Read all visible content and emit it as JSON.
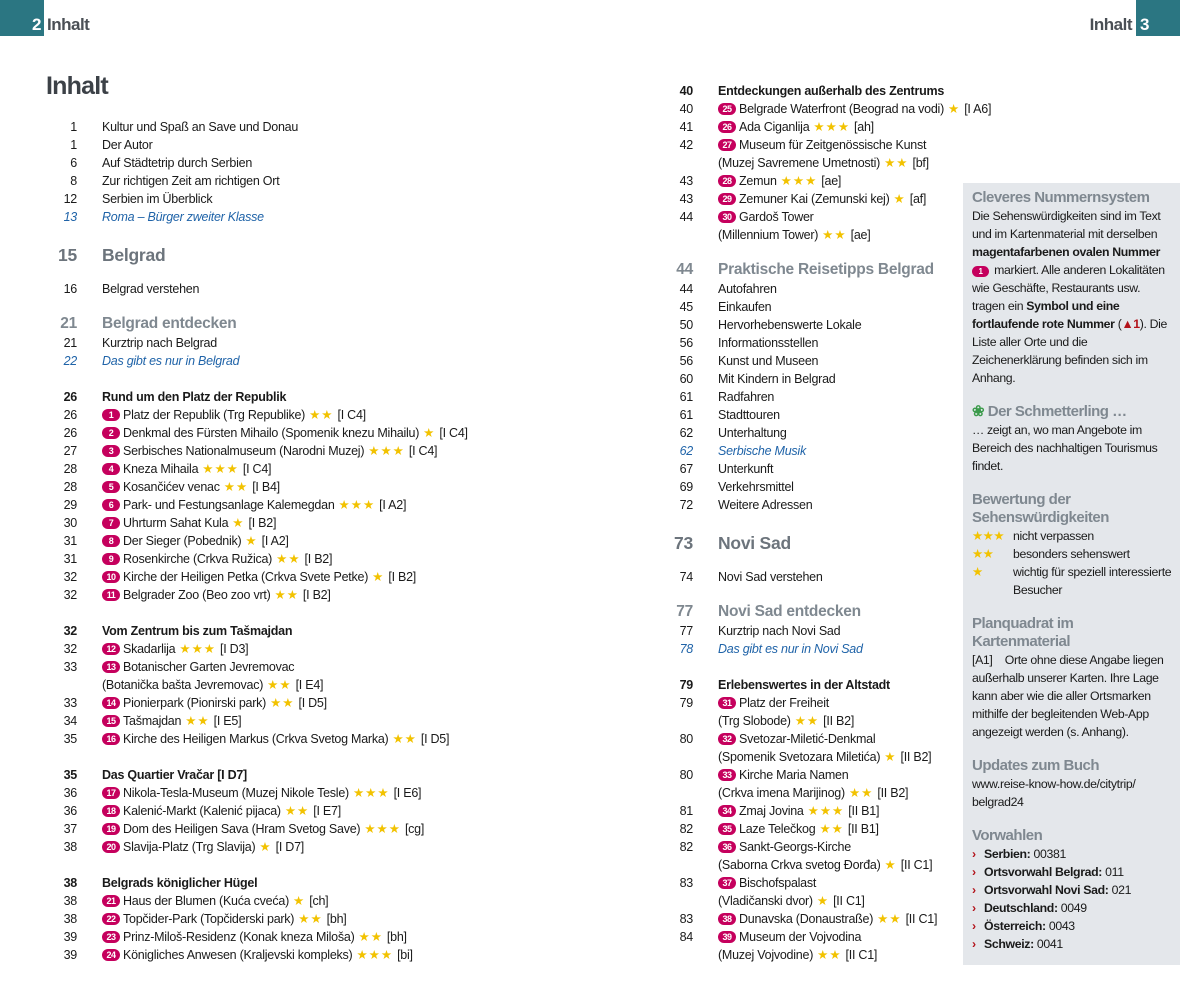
{
  "header": {
    "left_page": "2",
    "left_title": "Inhalt",
    "right_title": "Inhalt",
    "right_page": "3",
    "accent": "#2b7682"
  },
  "title": "Inhalt",
  "colors": {
    "badge": "#c5005d",
    "star": "#f2c200",
    "italic_link": "#1f63a8",
    "sidebar_bg": "#e4e7eb"
  },
  "left_column": [
    {
      "type": "plain",
      "page": "1",
      "text": "Kultur und Spaß an Save und Donau"
    },
    {
      "type": "plain",
      "page": "1",
      "text": "Der Autor"
    },
    {
      "type": "plain",
      "page": "6",
      "text": "Auf Städtetrip durch Serbien"
    },
    {
      "type": "plain",
      "page": "8",
      "text": "Zur richtigen Zeit am richtigen Ort"
    },
    {
      "type": "plain",
      "page": "12",
      "text": "Serbien im Überblick"
    },
    {
      "type": "italic",
      "page": "13",
      "text": "Roma – Bürger zweiter Klasse"
    },
    {
      "type": "major",
      "page": "15",
      "text": "Belgrad"
    },
    {
      "type": "plain",
      "page": "16",
      "text": "Belgrad verstehen"
    },
    {
      "type": "section",
      "page": "21",
      "text": "Belgrad entdecken"
    },
    {
      "type": "plain",
      "page": "21",
      "text": "Kurztrip nach Belgrad"
    },
    {
      "type": "italic",
      "page": "22",
      "text": "Das gibt es nur in Belgrad"
    },
    {
      "type": "group",
      "page": "26",
      "text": "Rund um den Platz der Republik"
    },
    {
      "type": "item",
      "page": "26",
      "num": "1",
      "text": "Platz der Republik (Trg Republike)",
      "stars": "★★",
      "ref": "[I C4]"
    },
    {
      "type": "item",
      "page": "26",
      "num": "2",
      "text": "Denkmal des Fürsten Mihailo (Spomenik knezu Mihailu)",
      "stars": "★",
      "ref": "[I C4]"
    },
    {
      "type": "item",
      "page": "27",
      "num": "3",
      "text": "Serbisches Nationalmuseum (Narodni Muzej)",
      "stars": "★★★",
      "ref": "[I C4]"
    },
    {
      "type": "item",
      "page": "28",
      "num": "4",
      "text": "Kneza Mihaila",
      "stars": "★★★",
      "ref": "[I C4]"
    },
    {
      "type": "item",
      "page": "28",
      "num": "5",
      "text": "Kosančićev venac",
      "stars": "★★",
      "ref": "[I B4]"
    },
    {
      "type": "item",
      "page": "29",
      "num": "6",
      "text": "Park- und Festungsanlage Kalemegdan",
      "stars": "★★★",
      "ref": "[I A2]"
    },
    {
      "type": "item",
      "page": "30",
      "num": "7",
      "text": "Uhrturm Sahat Kula",
      "stars": "★",
      "ref": "[I B2]"
    },
    {
      "type": "item",
      "page": "31",
      "num": "8",
      "text": "Der Sieger (Pobednik)",
      "stars": "★",
      "ref": "[I A2]"
    },
    {
      "type": "item",
      "page": "31",
      "num": "9",
      "text": "Rosenkirche (Crkva Ružica)",
      "stars": "★★",
      "ref": "[I B2]"
    },
    {
      "type": "item",
      "page": "32",
      "num": "10",
      "text": "Kirche der Heiligen Petka (Crkva Svete Petke)",
      "stars": "★",
      "ref": "[I B2]"
    },
    {
      "type": "item",
      "page": "32",
      "num": "11",
      "text": "Belgrader Zoo (Beo zoo vrt)",
      "stars": "★★",
      "ref": "[I B2]"
    },
    {
      "type": "group",
      "page": "32",
      "text": "Vom Zentrum bis zum Tašmajdan"
    },
    {
      "type": "item",
      "page": "32",
      "num": "12",
      "text": "Skadarlija",
      "stars": "★★★",
      "ref": "[I D3]"
    },
    {
      "type": "item",
      "page": "33",
      "num": "13",
      "text": "Botanischer Garten Jevremovac",
      "cont": "(Botanička bašta Jevremovac)",
      "stars": "★★",
      "ref": "[I E4]"
    },
    {
      "type": "item",
      "page": "33",
      "num": "14",
      "text": "Pionierpark (Pionirski park)",
      "stars": "★★",
      "ref": "[I D5]"
    },
    {
      "type": "item",
      "page": "34",
      "num": "15",
      "text": "Tašmajdan",
      "stars": "★★",
      "ref": "[I E5]"
    },
    {
      "type": "item",
      "page": "35",
      "num": "16",
      "text": "Kirche des Heiligen Markus (Crkva Svetog Marka)",
      "stars": "★★",
      "ref": "[I D5]"
    },
    {
      "type": "group",
      "page": "35",
      "text": "Das Quartier Vračar [I D7]"
    },
    {
      "type": "item",
      "page": "36",
      "num": "17",
      "text": "Nikola-Tesla-Museum (Muzej Nikole Tesle)",
      "stars": "★★★",
      "ref": "[I E6]"
    },
    {
      "type": "item",
      "page": "36",
      "num": "18",
      "text": "Kalenić-Markt (Kalenić pijaca)",
      "stars": "★★",
      "ref": "[I E7]"
    },
    {
      "type": "item",
      "page": "37",
      "num": "19",
      "text": "Dom des Heiligen Sava (Hram Svetog Save)",
      "stars": "★★★",
      "ref": "[cg]"
    },
    {
      "type": "item",
      "page": "38",
      "num": "20",
      "text": "Slavija-Platz (Trg Slavija)",
      "stars": "★",
      "ref": "[I D7]"
    },
    {
      "type": "group",
      "page": "38",
      "text": "Belgrads königlicher Hügel"
    },
    {
      "type": "item",
      "page": "38",
      "num": "21",
      "text": "Haus der Blumen (Kuća cveća)",
      "stars": "★",
      "ref": "[ch]"
    },
    {
      "type": "item",
      "page": "38",
      "num": "22",
      "text": "Topčider-Park (Topčiderski park)",
      "stars": "★★",
      "ref": "[bh]"
    },
    {
      "type": "item",
      "page": "39",
      "num": "23",
      "text": "Prinz-Miloš-Residenz (Konak kneza Miloša)",
      "stars": "★★",
      "ref": "[bh]"
    },
    {
      "type": "item",
      "page": "39",
      "num": "24",
      "text": "Königliches Anwesen (Kraljevski kompleks)",
      "stars": "★★★",
      "ref": "[bi]"
    }
  ],
  "right_column": [
    {
      "type": "group0",
      "page": "40",
      "text": "Entdeckungen außerhalb des Zentrums"
    },
    {
      "type": "item",
      "page": "40",
      "num": "25",
      "text": "Belgrade Waterfront (Beograd na vodi)",
      "stars": "★",
      "ref": "[I A6]"
    },
    {
      "type": "item",
      "page": "41",
      "num": "26",
      "text": "Ada Ciganlija",
      "stars": "★★★",
      "ref": "[ah]"
    },
    {
      "type": "item",
      "page": "42",
      "num": "27",
      "text": "Museum für Zeitgenössische Kunst",
      "cont": "(Muzej Savremene Umetnosti)",
      "stars": "★★",
      "ref": "[bf]"
    },
    {
      "type": "item",
      "page": "43",
      "num": "28",
      "text": "Zemun",
      "stars": "★★★",
      "ref": "[ae]"
    },
    {
      "type": "item",
      "page": "43",
      "num": "29",
      "text": "Zemuner Kai (Zemunski kej)",
      "stars": "★",
      "ref": "[af]"
    },
    {
      "type": "item",
      "page": "44",
      "num": "30",
      "text": "Gardoš Tower",
      "cont": "(Millennium Tower)",
      "stars": "★★",
      "ref": "[ae]"
    },
    {
      "type": "section",
      "page": "44",
      "text": "Praktische Reisetipps Belgrad"
    },
    {
      "type": "plain",
      "page": "44",
      "text": "Autofahren"
    },
    {
      "type": "plain",
      "page": "45",
      "text": "Einkaufen"
    },
    {
      "type": "plain",
      "page": "50",
      "text": "Hervorhebenswerte Lokale"
    },
    {
      "type": "plain",
      "page": "56",
      "text": "Informationsstellen"
    },
    {
      "type": "plain",
      "page": "56",
      "text": "Kunst und Museen"
    },
    {
      "type": "plain",
      "page": "60",
      "text": "Mit Kindern in Belgrad"
    },
    {
      "type": "plain",
      "page": "61",
      "text": "Radfahren"
    },
    {
      "type": "plain",
      "page": "61",
      "text": "Stadttouren"
    },
    {
      "type": "plain",
      "page": "62",
      "text": "Unterhaltung"
    },
    {
      "type": "italic",
      "page": "62",
      "text": "Serbische Musik"
    },
    {
      "type": "plain",
      "page": "67",
      "text": "Unterkunft"
    },
    {
      "type": "plain",
      "page": "69",
      "text": "Verkehrsmittel"
    },
    {
      "type": "plain",
      "page": "72",
      "text": "Weitere Adressen"
    },
    {
      "type": "major",
      "page": "73",
      "text": "Novi Sad"
    },
    {
      "type": "plain",
      "page": "74",
      "text": "Novi Sad verstehen"
    },
    {
      "type": "section",
      "page": "77",
      "text": "Novi Sad entdecken"
    },
    {
      "type": "plain",
      "page": "77",
      "text": "Kurztrip nach Novi Sad"
    },
    {
      "type": "italic",
      "page": "78",
      "text": "Das gibt es nur in Novi Sad"
    },
    {
      "type": "group",
      "page": "79",
      "text": "Erlebenswertes in der Altstadt"
    },
    {
      "type": "item",
      "page": "79",
      "num": "31",
      "text": "Platz der Freiheit",
      "cont": "(Trg Slobode)",
      "stars": "★★",
      "ref": "[II B2]"
    },
    {
      "type": "item",
      "page": "80",
      "num": "32",
      "text": "Svetozar-Miletić-Denkmal",
      "cont": "(Spomenik Svetozara Miletića)",
      "stars": "★",
      "ref": "[II B2]"
    },
    {
      "type": "item",
      "page": "80",
      "num": "33",
      "text": "Kirche Maria Namen",
      "cont": "(Crkva imena Marijinog)",
      "stars": "★★",
      "ref": "[II B2]"
    },
    {
      "type": "item",
      "page": "81",
      "num": "34",
      "text": "Zmaj Jovina",
      "stars": "★★★",
      "ref": "[II B1]"
    },
    {
      "type": "item",
      "page": "82",
      "num": "35",
      "text": "Laze Telečkog",
      "stars": "★★",
      "ref": "[II B1]"
    },
    {
      "type": "item",
      "page": "82",
      "num": "36",
      "text": "Sankt-Georgs-Kirche",
      "cont": "(Saborna Crkva svetog Đorđa)",
      "stars": "★",
      "ref": "[II C1]"
    },
    {
      "type": "item",
      "page": "83",
      "num": "37",
      "text": "Bischofspalast",
      "cont": "(Vladičanski dvor)",
      "stars": "★",
      "ref": "[II C1]"
    },
    {
      "type": "item",
      "page": "83",
      "num": "38",
      "text": "Dunavska (Donaustraße)",
      "stars": "★★",
      "ref": "[II C1]"
    },
    {
      "type": "item",
      "page": "84",
      "num": "39",
      "text": "Museum der Vojvodina",
      "cont": "(Muzej Vojvodine)",
      "stars": "★★",
      "ref": "[II C1]"
    }
  ],
  "sidebar": {
    "numbering": {
      "heading": "Cleveres Nummernsystem",
      "p1": "Die Sehenswürdigkeiten sind im Text und im Kartenmaterial mit derselben",
      "p1_bold": "magentafarbenen ovalen Nummer",
      "badge": "1",
      "p2": "markiert. Alle anderen Lokalitäten wie Geschäfte, Restaurants usw. tragen ein",
      "p2_bold": "Symbol und eine fortlaufende rote Nummer",
      "p3_open": "(",
      "red_number": "1",
      "p3": "). Die Liste aller Orte und die Zeichenerklärung befinden sich im Anhang."
    },
    "butterfly": {
      "heading": "Der Schmetterling …",
      "text": "… zeigt an, wo man Angebote im Bereich des nachhaltigen Tourismus findet."
    },
    "rating": {
      "heading": "Bewertung der Sehenswürdigkeiten",
      "items": [
        {
          "stars": "★★★",
          "text": "nicht verpassen"
        },
        {
          "stars": "★★",
          "text": "besonders sehenswert"
        },
        {
          "stars": "★",
          "text": "wichtig für speziell interessierte Besucher"
        }
      ]
    },
    "grid": {
      "heading": "Planquadrat im Kartenmaterial",
      "code": "[A1]",
      "text": "Orte ohne diese Angabe liegen außerhalb unserer Karten. Ihre Lage kann aber wie die aller Ortsmarken mithilfe der begleitenden Web-App angezeigt werden (s. Anhang)."
    },
    "updates": {
      "heading": "Updates zum Buch",
      "url": "www.reise-know-how.de/citytrip/ belgrad24"
    },
    "dialing": {
      "heading": "Vorwahlen",
      "items": [
        {
          "label": "Serbien:",
          "value": "00381"
        },
        {
          "label": "Ortsvorwahl Belgrad:",
          "value": "011"
        },
        {
          "label": "Ortsvorwahl Novi Sad:",
          "value": "021"
        },
        {
          "label": "Deutschland:",
          "value": "0049"
        },
        {
          "label": "Österreich:",
          "value": "0043"
        },
        {
          "label": "Schweiz:",
          "value": "0041"
        }
      ]
    }
  }
}
